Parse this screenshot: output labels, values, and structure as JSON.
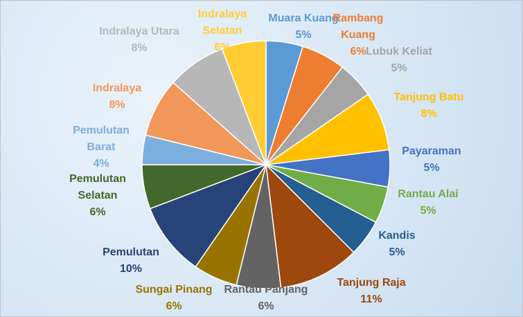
{
  "chart_data": {
    "type": "pie",
    "categories": [
      "Muara Kuang",
      "Rambang Kuang",
      "Lubuk Keliat",
      "Tanjung Batu",
      "Payaraman",
      "Rantau Alai",
      "Kandis",
      "Tanjung Raja",
      "Rantau Panjang",
      "Sungai Pinang",
      "Pemulutan",
      "Pemulutan Selatan",
      "Pemulutan Barat",
      "Indralaya",
      "Indralaya Utara",
      "Indralaya Selatan"
    ],
    "values": [
      5,
      6,
      5,
      8,
      5,
      5,
      5,
      11,
      6,
      6,
      10,
      6,
      4,
      8,
      8,
      6
    ],
    "value_labels": [
      "5%",
      "6%",
      "5%",
      "8%",
      "5%",
      "5%",
      "5%",
      "11%",
      "6%",
      "6%",
      "10%",
      "6%",
      "4%",
      "8%",
      "8%",
      "6%"
    ],
    "colors": [
      "#5b9bd5",
      "#ed7d31",
      "#a5a5a5",
      "#ffc000",
      "#4472c4",
      "#70ad47",
      "#255e91",
      "#9e480e",
      "#636363",
      "#997300",
      "#264478",
      "#43682b",
      "#7cafdd",
      "#f1975a",
      "#b7b7b7",
      "#ffcd33"
    ]
  }
}
